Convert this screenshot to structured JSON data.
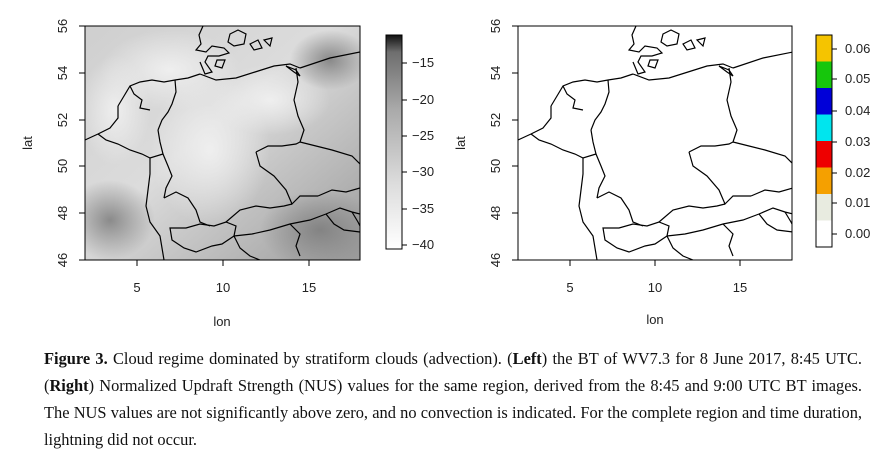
{
  "figure": {
    "left_panel": {
      "xlabel": "lon",
      "ylabel": "lat",
      "xticks": [
        "5",
        "10",
        "15"
      ],
      "yticks": [
        "46",
        "48",
        "50",
        "52",
        "54",
        "56"
      ],
      "colorbar_ticks": [
        "−15",
        "−20",
        "−25",
        "−30",
        "−35",
        "−40"
      ]
    },
    "right_panel": {
      "xlabel": "lon",
      "ylabel": "lat",
      "xticks": [
        "5",
        "10",
        "15"
      ],
      "yticks": [
        "46",
        "48",
        "50",
        "52",
        "54",
        "56"
      ],
      "colorbar_ticks": [
        "0.06",
        "0.05",
        "0.04",
        "0.03",
        "0.02",
        "0.01",
        "0.00"
      ],
      "colorbar_colors": [
        "#f5c400",
        "#16c60c",
        "#0000d8",
        "#00e5ee",
        "#ee0000",
        "#f5a000",
        "#e8ebe0",
        "#ffffff"
      ]
    }
  },
  "caption": {
    "label": "Figure 3.",
    "part1": " Cloud regime dominated by stratiform clouds (advection). (",
    "left": "Left",
    "part2": ") the BT of WV7.3 for 8 June 2017, 8:45 UTC. (",
    "right": "Right",
    "part3": ") Normalized Updraft Strength (NUS) values for the same region, derived from the 8:45 and 9:00 UTC BT images. The NUS values are not significantly above zero, and no convection is indicated. For the complete region and time duration, lightning did not occur."
  }
}
